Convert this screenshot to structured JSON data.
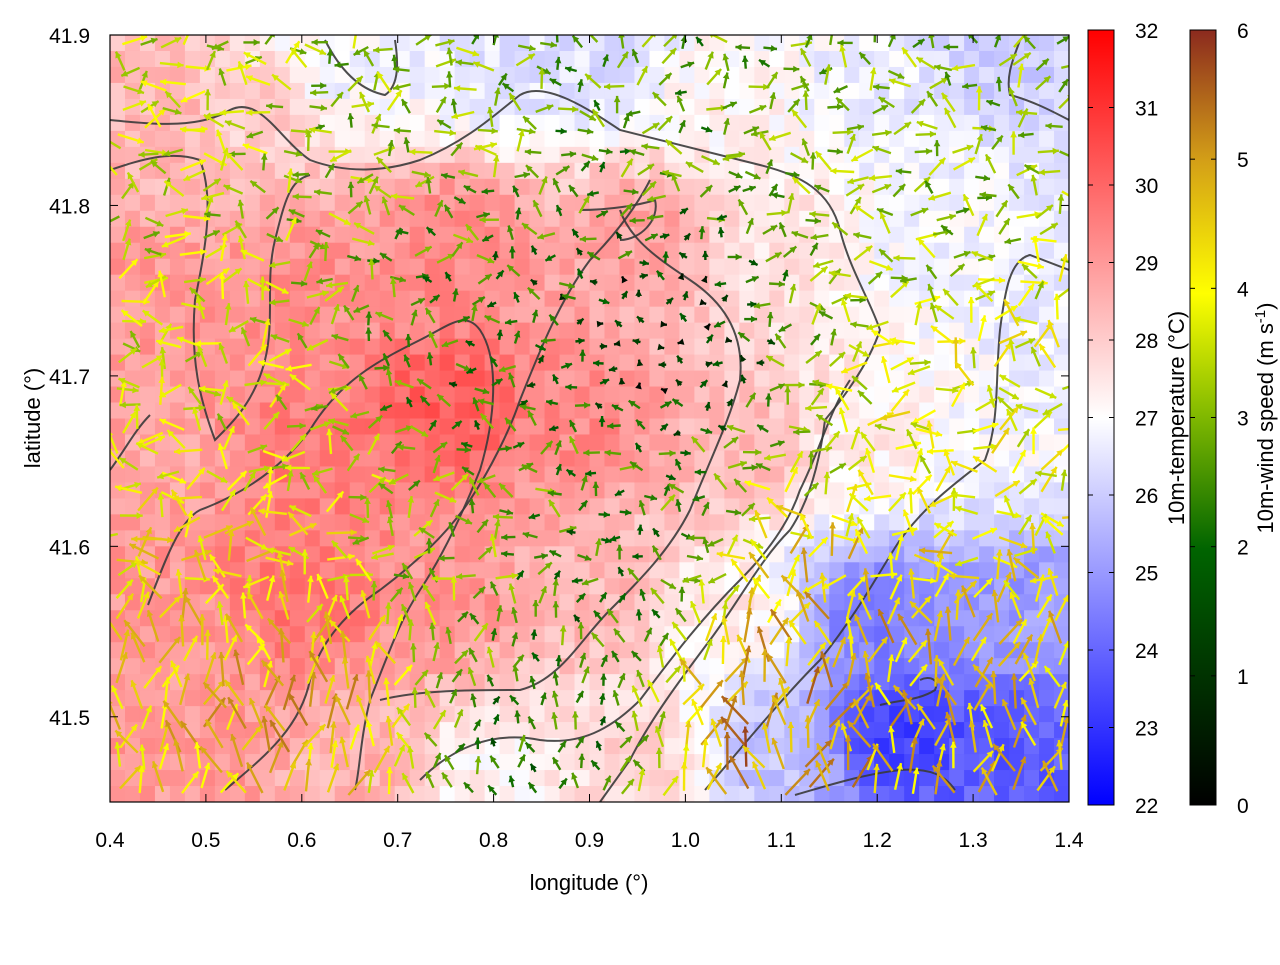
{
  "chart_data": {
    "type": "heatmap",
    "subtype": "2D temperature field with overlaid wind vectors and terrain contour lines",
    "xlabel": "longitude (°)",
    "ylabel": "latitude (°)",
    "xlim": [
      0.4,
      1.4
    ],
    "ylim": [
      41.45,
      41.9
    ],
    "x_ticks": [
      "0.4",
      "0.5",
      "0.6",
      "0.7",
      "0.8",
      "0.9",
      "1.0",
      "1.1",
      "1.2",
      "1.3",
      "1.4"
    ],
    "y_ticks": [
      "41.5",
      "41.6",
      "41.7",
      "41.8",
      "41.9"
    ],
    "grid": false,
    "temperature_colorbar": {
      "label": "10m-temperature (°C)",
      "range": [
        22,
        32
      ],
      "ticks": [
        "22",
        "23",
        "24",
        "25",
        "26",
        "27",
        "28",
        "29",
        "30",
        "31",
        "32"
      ],
      "colors": [
        "#0000ff",
        "#ffffff",
        "#ff0000"
      ]
    },
    "wind_colorbar": {
      "label": "10m-wind speed (m s",
      "label_superscript": "-1",
      "label_end": ")",
      "range": [
        0,
        6
      ],
      "ticks": [
        "0",
        "1",
        "2",
        "3",
        "4",
        "5",
        "6"
      ],
      "colors": [
        "#000000",
        "#006400",
        "#7fb800",
        "#ffff00",
        "#d4a017",
        "#8b2a1e"
      ]
    },
    "temperature_field": {
      "description_values_degC": {
        "central_plateau_0.6_0.9_lon_41.55_41.8_lat": 29.5,
        "northwest_corner": 28.5,
        "north_edge_0.75_1.0_lon": 26.5,
        "east_1.15_1.4_lon_41.7_41.85_lat": 26.8,
        "southeast_1.1_1.35_lon_41.46_41.56_lat": 23.5,
        "southwest_0.45_0.7_lon_41.5_41.6_lat": 29.0
      },
      "samples": [
        [
          0.45,
          41.85,
          28.5
        ],
        [
          0.55,
          41.85,
          28.0
        ],
        [
          0.65,
          41.88,
          26.8
        ],
        [
          0.8,
          41.88,
          26.5
        ],
        [
          0.9,
          41.88,
          26.4
        ],
        [
          1.05,
          41.86,
          27.2
        ],
        [
          1.2,
          41.86,
          26.6
        ],
        [
          1.35,
          41.88,
          26.0
        ],
        [
          0.45,
          41.75,
          29.0
        ],
        [
          0.6,
          41.75,
          29.2
        ],
        [
          0.75,
          41.78,
          29.3
        ],
        [
          0.95,
          41.78,
          28.8
        ],
        [
          1.1,
          41.78,
          27.5
        ],
        [
          1.25,
          41.78,
          26.8
        ],
        [
          1.38,
          41.75,
          26.6
        ],
        [
          0.45,
          41.65,
          28.8
        ],
        [
          0.6,
          41.65,
          29.6
        ],
        [
          0.75,
          41.68,
          30.2
        ],
        [
          0.9,
          41.67,
          29.3
        ],
        [
          1.05,
          41.66,
          28.4
        ],
        [
          1.2,
          41.66,
          27.3
        ],
        [
          1.35,
          41.66,
          26.8
        ],
        [
          0.45,
          41.55,
          29.0
        ],
        [
          0.6,
          41.57,
          29.8
        ],
        [
          0.75,
          41.57,
          29.1
        ],
        [
          0.9,
          41.57,
          28.4
        ],
        [
          1.05,
          41.56,
          27.3
        ],
        [
          1.2,
          41.56,
          24.5
        ],
        [
          1.35,
          41.56,
          25.0
        ],
        [
          0.5,
          41.48,
          29.0
        ],
        [
          0.65,
          41.47,
          28.5
        ],
        [
          0.8,
          41.47,
          27.2
        ],
        [
          0.95,
          41.48,
          27.8
        ],
        [
          1.1,
          41.48,
          25.8
        ],
        [
          1.22,
          41.49,
          23.2
        ],
        [
          1.35,
          41.48,
          23.8
        ]
      ]
    },
    "wind_field": {
      "description": "Dense arrows colored by speed; strong (4-6 m/s) northward-flowing yellow/orange arrows in the south-east basin and south-west, weak near-calm (0-1 m/s) dark arrows over the central plateau.",
      "speed_samples_ms": [
        [
          0.45,
          41.85,
          3.0
        ],
        [
          0.7,
          41.85,
          2.5
        ],
        [
          0.95,
          41.85,
          2.0
        ],
        [
          1.25,
          41.82,
          2.5
        ],
        [
          0.5,
          41.7,
          3.2
        ],
        [
          0.8,
          41.72,
          1.5
        ],
        [
          0.95,
          41.72,
          0.5
        ],
        [
          1.3,
          41.7,
          3.5
        ],
        [
          0.55,
          41.58,
          4.0
        ],
        [
          0.75,
          41.6,
          2.5
        ],
        [
          0.9,
          41.58,
          1.5
        ],
        [
          1.15,
          41.55,
          4.5
        ],
        [
          0.6,
          41.5,
          4.5
        ],
        [
          0.85,
          41.48,
          1.5
        ],
        [
          1.1,
          41.48,
          5.0
        ],
        [
          1.3,
          41.5,
          4.2
        ]
      ]
    },
    "contours_description": "Dark grey terrain elevation contour lines"
  }
}
